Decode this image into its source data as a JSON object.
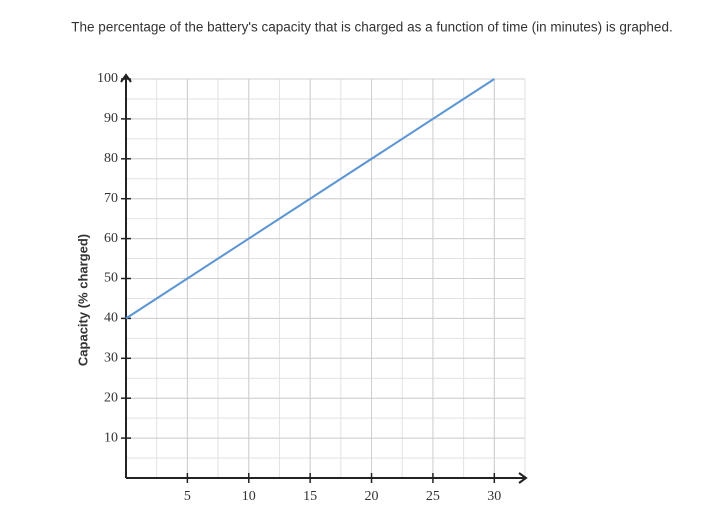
{
  "chart_data": {
    "type": "line",
    "title": "The percentage of the battery's capacity that is charged as a function of time (in minutes) is graphed.",
    "y_label": "Capacity (% charged)",
    "x": [
      0,
      30
    ],
    "series": [
      {
        "name": "Capacity",
        "color": "#5b95d4",
        "values": [
          40,
          100
        ]
      }
    ],
    "xlim": [
      0,
      32.5
    ],
    "ylim": [
      0,
      100
    ],
    "xticks": [
      5,
      10,
      15,
      20,
      25,
      30
    ],
    "yticks": [
      10,
      20,
      30,
      40,
      50,
      60,
      70,
      80,
      90,
      100
    ],
    "grid": true
  }
}
